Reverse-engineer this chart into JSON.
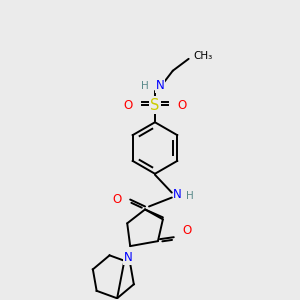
{
  "background_color": "#ebebeb",
  "atom_colors": {
    "C": "#000000",
    "H": "#5a8a8a",
    "N": "#0000ff",
    "O": "#ff0000",
    "S": "#cccc00"
  },
  "bond_color": "#000000",
  "figsize": [
    3.0,
    3.0
  ],
  "dpi": 100,
  "lw": 1.4,
  "fs": 8.5,
  "fs_small": 7.5
}
